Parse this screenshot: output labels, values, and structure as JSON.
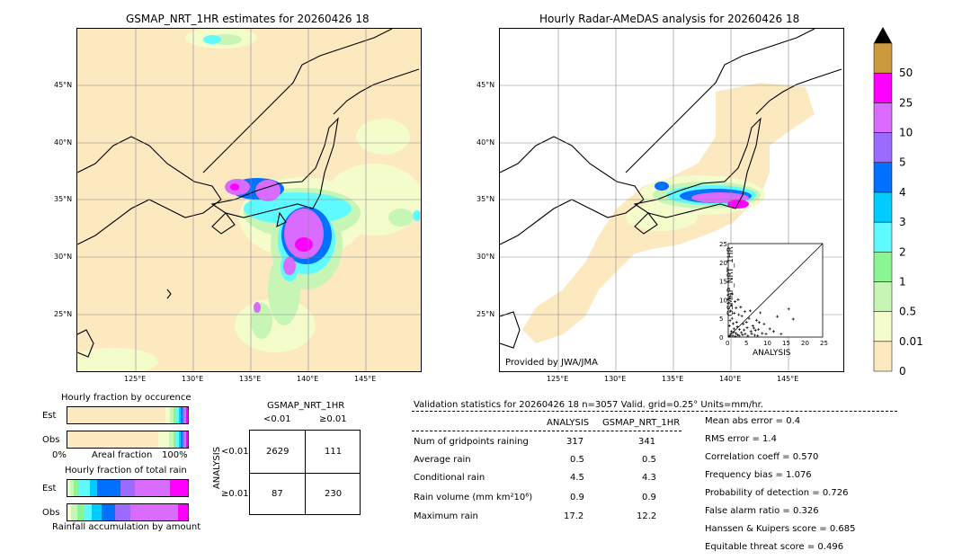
{
  "left_map": {
    "title": "GSMAP_NRT_1HR estimates for 20260426 18",
    "lat_labels": [
      "45°N",
      "40°N",
      "35°N",
      "30°N",
      "25°N"
    ],
    "lon_labels": [
      "125°E",
      "130°E",
      "135°E",
      "140°E",
      "145°E"
    ]
  },
  "right_map": {
    "title": "Hourly Radar-AMeDAS analysis for 20260426 18",
    "lat_labels": [
      "45°N",
      "40°N",
      "35°N",
      "30°N",
      "25°N"
    ],
    "lon_labels": [
      "125°E",
      "130°E",
      "135°E",
      "140°E",
      "145°E"
    ],
    "credit": "Provided by JWA/JMA"
  },
  "colorbar": {
    "levels": [
      "0",
      "0.01",
      "0.5",
      "1",
      "2",
      "3",
      "4",
      "5",
      "10",
      "25",
      "50"
    ],
    "colors": [
      "#fde9c0",
      "#f4fccb",
      "#c6f5b6",
      "#8bf593",
      "#5ffaff",
      "#00ccff",
      "#0070ff",
      "#9b6bff",
      "#d96bff",
      "#ff00ff",
      "#cc9a3e"
    ]
  },
  "scatter": {
    "ylabel": "GSMAP_NRT_1HR",
    "xlabel": "ANALYSIS",
    "ticks": [
      "0",
      "5",
      "10",
      "15",
      "20",
      "25"
    ]
  },
  "chart_data": {
    "type": "scatter",
    "title": "",
    "xlabel": "ANALYSIS",
    "ylabel": "GSMAP_NRT_1HR",
    "xlim": [
      0,
      25
    ],
    "ylim": [
      0,
      25
    ],
    "points": [
      [
        0.5,
        0.3
      ],
      [
        0.8,
        1.5
      ],
      [
        1.2,
        0.4
      ],
      [
        1.5,
        2.2
      ],
      [
        2.0,
        1.0
      ],
      [
        0.3,
        3.0
      ],
      [
        2.5,
        0.6
      ],
      [
        3.0,
        2.0
      ],
      [
        1.0,
        5.0
      ],
      [
        0.6,
        7.0
      ],
      [
        1.8,
        9.5
      ],
      [
        2.2,
        4.0
      ],
      [
        3.5,
        1.2
      ],
      [
        4.0,
        3.5
      ],
      [
        4.5,
        0.8
      ],
      [
        5.0,
        2.5
      ],
      [
        0.4,
        10.5
      ],
      [
        1.1,
        11.5
      ],
      [
        2.8,
        6.0
      ],
      [
        3.3,
        8.0
      ],
      [
        5.5,
        5.0
      ],
      [
        6.0,
        1.5
      ],
      [
        6.5,
        3.0
      ],
      [
        7.0,
        0.5
      ],
      [
        7.5,
        4.5
      ],
      [
        8.0,
        2.0
      ],
      [
        8.5,
        6.5
      ],
      [
        9.0,
        1.0
      ],
      [
        9.5,
        3.5
      ],
      [
        10.0,
        0.8
      ],
      [
        0.2,
        0.2
      ],
      [
        0.7,
        0.9
      ],
      [
        1.4,
        1.3
      ],
      [
        1.9,
        0.2
      ],
      [
        2.4,
        2.8
      ],
      [
        2.9,
        0.3
      ],
      [
        3.8,
        0.6
      ],
      [
        4.2,
        1.9
      ],
      [
        4.8,
        4.0
      ],
      [
        5.2,
        0.3
      ],
      [
        5.8,
        7.0
      ],
      [
        6.2,
        0.9
      ],
      [
        6.8,
        2.4
      ],
      [
        7.2,
        1.8
      ],
      [
        7.8,
        0.4
      ],
      [
        8.2,
        3.9
      ],
      [
        3.6,
        5.6
      ],
      [
        1.6,
        6.4
      ],
      [
        0.9,
        8.6
      ],
      [
        2.6,
        10.0
      ],
      [
        12.0,
        1.5
      ],
      [
        14.0,
        0.8
      ],
      [
        16.0,
        7.5
      ],
      [
        17.2,
        4.8
      ],
      [
        11.0,
        2.2
      ],
      [
        13.0,
        5.5
      ],
      [
        1.3,
        3.6
      ],
      [
        0.5,
        4.4
      ],
      [
        2.1,
        7.8
      ],
      [
        4.4,
        6.8
      ]
    ]
  },
  "occurrence": {
    "title": "Hourly fraction by occurence",
    "rows": [
      "Est",
      "Obs"
    ],
    "axis_left": "0%",
    "axis_mid": "Areal fraction",
    "axis_right": "100%"
  },
  "amount": {
    "title": "Hourly fraction of total rain",
    "rows": [
      "Est",
      "Obs"
    ],
    "footer": "Rainfall accumulation by amount"
  },
  "contingency": {
    "col_title": "GSMAP_NRT_1HR",
    "col_lt": "<0.01",
    "col_ge": "≥0.01",
    "row_title": "ANALYSIS",
    "row_lt": "<0.01",
    "row_ge": "≥0.01",
    "cells": [
      "2629",
      "111",
      "87",
      "230"
    ]
  },
  "validation": {
    "header": "Validation statistics for 20260426 18  n=3057 Valid. grid=0.25°  Units=mm/hr.",
    "col_analysis": "ANALYSIS",
    "col_gsmap": "GSMAP_NRT_1HR",
    "rows": [
      {
        "label": "Num of gridpoints raining",
        "analysis": "317",
        "gsmap": "341"
      },
      {
        "label": "Average rain",
        "analysis": "0.5",
        "gsmap": "0.5"
      },
      {
        "label": "Conditional rain",
        "analysis": "4.5",
        "gsmap": "4.3"
      },
      {
        "label": "Rain volume (mm km²10⁶)",
        "analysis": "0.9",
        "gsmap": "0.9"
      },
      {
        "label": "Maximum rain",
        "analysis": "17.2",
        "gsmap": "12.2"
      }
    ],
    "scores": [
      "Mean abs error =    0.4",
      "RMS error =    1.4",
      "Correlation coeff =  0.570",
      "Frequency bias =  1.076",
      "Probability of detection =  0.726",
      "False alarm ratio =  0.326",
      "Hanssen & Kuipers score =  0.685",
      "Equitable threat score =  0.496"
    ]
  }
}
